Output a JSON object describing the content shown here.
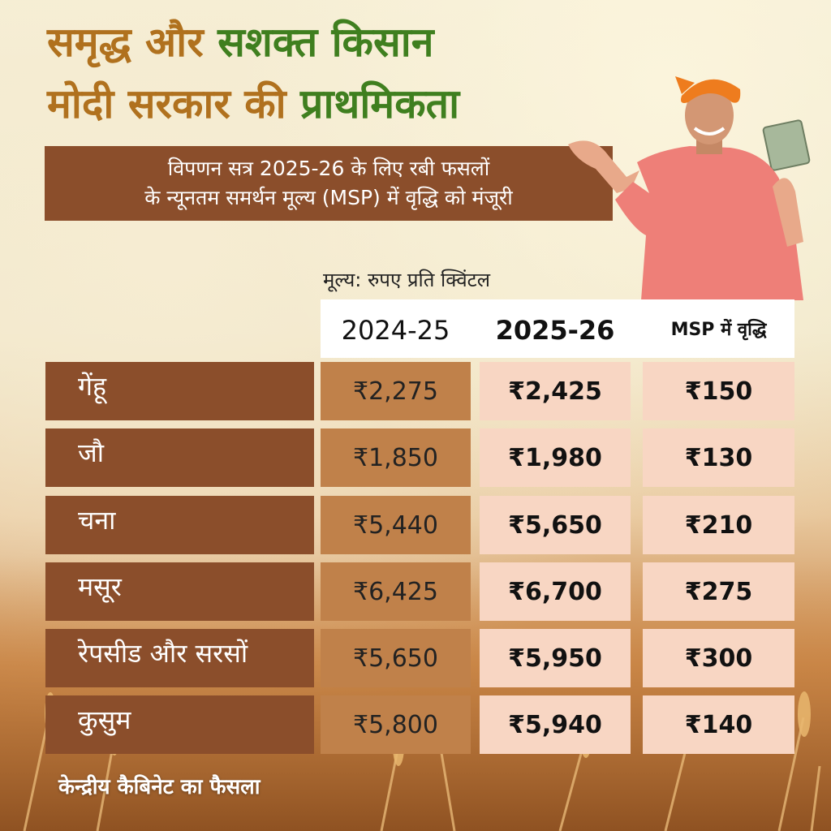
{
  "title": {
    "line1_part1": "समृद्ध और",
    "line1_part2": "सशक्त किसान",
    "line2_part1": "मोदी सरकार की",
    "line2_part2": "प्राथमिकता"
  },
  "banner": {
    "line1": "विपणन सत्र 2025-26 के लिए रबी फसलों",
    "line2": "के न्यूनतम समर्थन मूल्य (MSP) में वृद्धि को मंजूरी"
  },
  "unit_label": "मूल्य: रुपए प्रति क्विंटल",
  "table": {
    "headers": [
      "2024-25",
      "2025-26",
      "MSP में वृद्धि"
    ],
    "rows": [
      {
        "crop": "गेंहू",
        "y2024": "₹2,275",
        "y2025": "₹2,425",
        "increase": "₹150"
      },
      {
        "crop": "जौ",
        "y2024": "₹1,850",
        "y2025": "₹1,980",
        "increase": "₹130"
      },
      {
        "crop": "चना",
        "y2024": "₹5,440",
        "y2025": "₹5,650",
        "increase": "₹210"
      },
      {
        "crop": "मसूर",
        "y2024": "₹6,425",
        "y2025": "₹6,700",
        "increase": "₹275"
      },
      {
        "crop": "रेपसीड और सरसों",
        "y2024": "₹5,650",
        "y2025": "₹5,950",
        "increase": "₹300"
      },
      {
        "crop": "कुसुम",
        "y2024": "₹5,800",
        "y2025": "₹5,940",
        "increase": "₹140"
      }
    ]
  },
  "footer": "केन्द्रीय कैबिनेट का फैसला",
  "colors": {
    "title_green": "#3f7f1f",
    "title_brown": "#b0711e",
    "banner_brown": "#8b4e2b",
    "col_2024": "#c0814a",
    "col_2025": "#f8d6c3"
  },
  "icons": {
    "person": "farmer-with-cash-illustration",
    "background": "wheat-field"
  }
}
